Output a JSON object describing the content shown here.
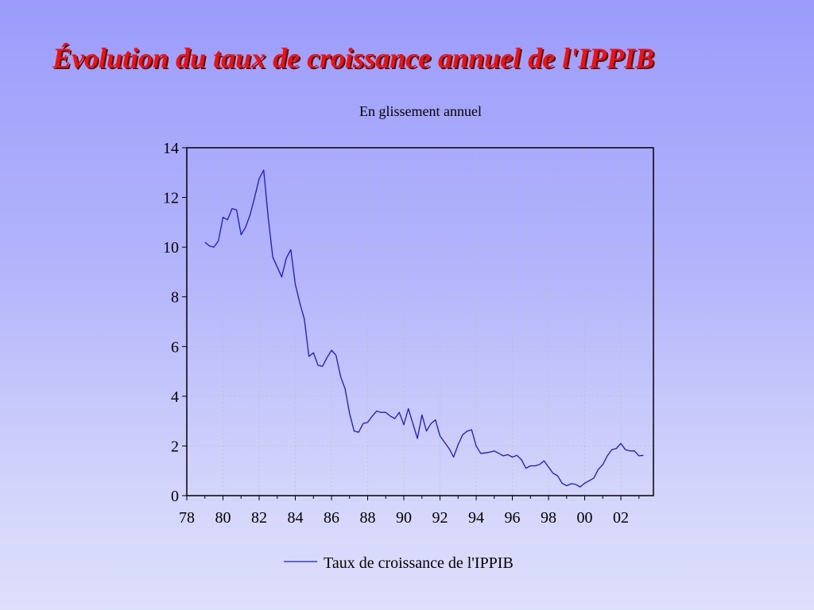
{
  "slide": {
    "title": "Évolution du taux de croissance annuel de l'IPPIB"
  },
  "chart_data": {
    "type": "line",
    "title": "",
    "subtitle": "En glissement annuel",
    "xlabel": "",
    "ylabel": "",
    "xlim": [
      1978,
      2003.8
    ],
    "ylim": [
      0,
      14
    ],
    "x_ticks": [
      1978,
      1980,
      1982,
      1984,
      1986,
      1988,
      1990,
      1992,
      1994,
      1996,
      1998,
      2000,
      2002
    ],
    "x_tick_labels": [
      "78",
      "80",
      "82",
      "84",
      "86",
      "88",
      "90",
      "92",
      "94",
      "96",
      "98",
      "00",
      "02"
    ],
    "y_ticks": [
      0,
      2,
      4,
      6,
      8,
      10,
      12,
      14
    ],
    "y_tick_labels": [
      "0",
      "2",
      "4",
      "6",
      "8",
      "10",
      "12",
      "14"
    ],
    "grid": true,
    "legend_position": "bottom-center",
    "line_color": "#1a1ad6",
    "series": [
      {
        "name": "Taux de croissance de l'IPPIB",
        "x": [
          1979.0,
          1979.25,
          1979.5,
          1979.75,
          1980.0,
          1980.25,
          1980.5,
          1980.75,
          1981.0,
          1981.25,
          1981.5,
          1981.75,
          1982.0,
          1982.25,
          1982.5,
          1982.75,
          1983.0,
          1983.25,
          1983.5,
          1983.75,
          1984.0,
          1984.25,
          1984.5,
          1984.75,
          1985.0,
          1985.25,
          1985.5,
          1985.75,
          1986.0,
          1986.25,
          1986.5,
          1986.75,
          1987.0,
          1987.25,
          1987.5,
          1987.75,
          1988.0,
          1988.25,
          1988.5,
          1988.75,
          1989.0,
          1989.25,
          1989.5,
          1989.75,
          1990.0,
          1990.25,
          1990.5,
          1990.75,
          1991.0,
          1991.25,
          1991.5,
          1991.75,
          1992.0,
          1992.25,
          1992.5,
          1992.75,
          1993.0,
          1993.25,
          1993.5,
          1993.75,
          1994.0,
          1994.25,
          1994.5,
          1994.75,
          1995.0,
          1995.25,
          1995.5,
          1995.75,
          1996.0,
          1996.25,
          1996.5,
          1996.75,
          1997.0,
          1997.25,
          1997.5,
          1997.75,
          1998.0,
          1998.25,
          1998.5,
          1998.75,
          1999.0,
          1999.25,
          1999.5,
          1999.75,
          2000.0,
          2000.25,
          2000.5,
          2000.75,
          2001.0,
          2001.25,
          2001.5,
          2001.75,
          2002.0,
          2002.25,
          2002.5,
          2002.75,
          2003.0,
          2003.25
        ],
        "values": [
          10.2,
          10.05,
          10.0,
          10.25,
          11.2,
          11.1,
          11.55,
          11.5,
          10.5,
          10.8,
          11.3,
          12.0,
          12.75,
          13.1,
          11.2,
          9.6,
          9.2,
          8.8,
          9.55,
          9.9,
          8.5,
          7.75,
          7.1,
          5.6,
          5.75,
          5.25,
          5.2,
          5.55,
          5.85,
          5.65,
          4.8,
          4.3,
          3.3,
          2.6,
          2.55,
          2.9,
          2.95,
          3.2,
          3.4,
          3.35,
          3.35,
          3.2,
          3.1,
          3.35,
          2.85,
          3.5,
          2.9,
          2.3,
          3.25,
          2.6,
          2.9,
          3.05,
          2.4,
          2.15,
          1.9,
          1.55,
          2.05,
          2.45,
          2.6,
          2.65,
          2.0,
          1.7,
          1.72,
          1.75,
          1.8,
          1.7,
          1.6,
          1.65,
          1.55,
          1.62,
          1.45,
          1.1,
          1.2,
          1.2,
          1.25,
          1.4,
          1.15,
          0.9,
          0.8,
          0.5,
          0.4,
          0.48,
          0.45,
          0.35,
          0.5,
          0.6,
          0.7,
          1.05,
          1.25,
          1.6,
          1.85,
          1.9,
          2.1,
          1.85,
          1.8,
          1.8,
          1.6,
          1.62
        ]
      }
    ]
  }
}
